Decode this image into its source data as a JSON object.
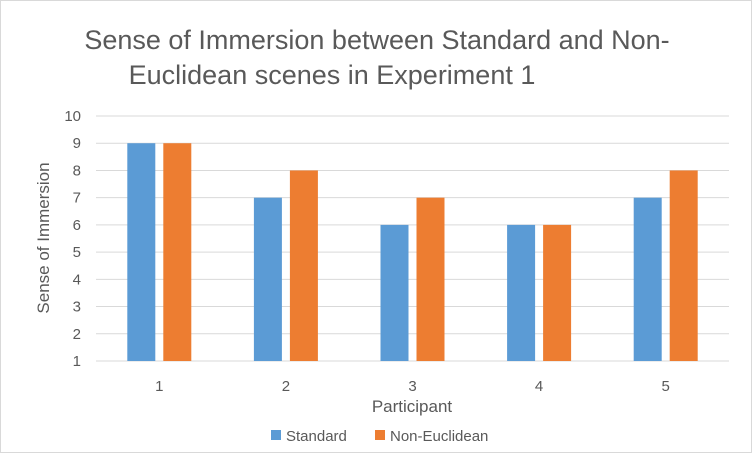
{
  "chart_data": {
    "type": "bar",
    "title_lines": [
      "Sense of Immersion between Standard and Non-",
      "Euclidean scenes in Experiment 1"
    ],
    "xlabel": "Participant",
    "ylabel": "Sense of Immersion",
    "categories": [
      "1",
      "2",
      "3",
      "4",
      "5"
    ],
    "ylim": [
      1,
      10
    ],
    "yticks": [
      "1",
      "2",
      "3",
      "4",
      "5",
      "6",
      "7",
      "8",
      "9",
      "10"
    ],
    "grid": true,
    "legend_position": "bottom",
    "series": [
      {
        "name": "Standard",
        "color": "#5b9bd5",
        "values": [
          9,
          7,
          6,
          6,
          7
        ]
      },
      {
        "name": "Non-Euclidean",
        "color": "#ed7d31",
        "values": [
          9,
          8,
          7,
          6,
          8
        ]
      }
    ]
  }
}
